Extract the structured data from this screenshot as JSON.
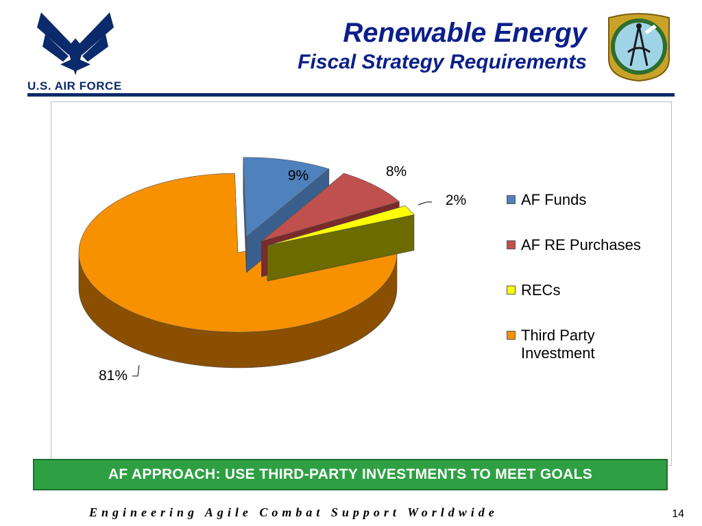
{
  "slide": {
    "title": "Renewable Energy",
    "subtitle": "Fiscal Strategy Requirements",
    "logo_text": "U.S. AIR FORCE",
    "banner": "AF APPROACH: USE THIRD-PARTY INVESTMENTS TO MEET GOALS",
    "footer": "Engineering Agile Combat Support Worldwide",
    "page_number": "14"
  },
  "chart_data": {
    "type": "pie",
    "style": "3d-exploded",
    "legend_position": "right",
    "slices": [
      {
        "name": "AF Funds",
        "value": 9,
        "label": "9%",
        "color": "#4f81bd",
        "side_color": "#3a5f8c"
      },
      {
        "name": "AF RE Purchases",
        "value": 8,
        "label": "8%",
        "color": "#c0504d",
        "side_color": "#7a2a28"
      },
      {
        "name": "RECs",
        "value": 2,
        "label": "2%",
        "color": "#ffff00",
        "side_color": "#6b6b00"
      },
      {
        "name": "Third Party Investment",
        "value": 81,
        "label": "81%",
        "color": "#f79100",
        "side_color": "#8a4f00"
      }
    ]
  }
}
